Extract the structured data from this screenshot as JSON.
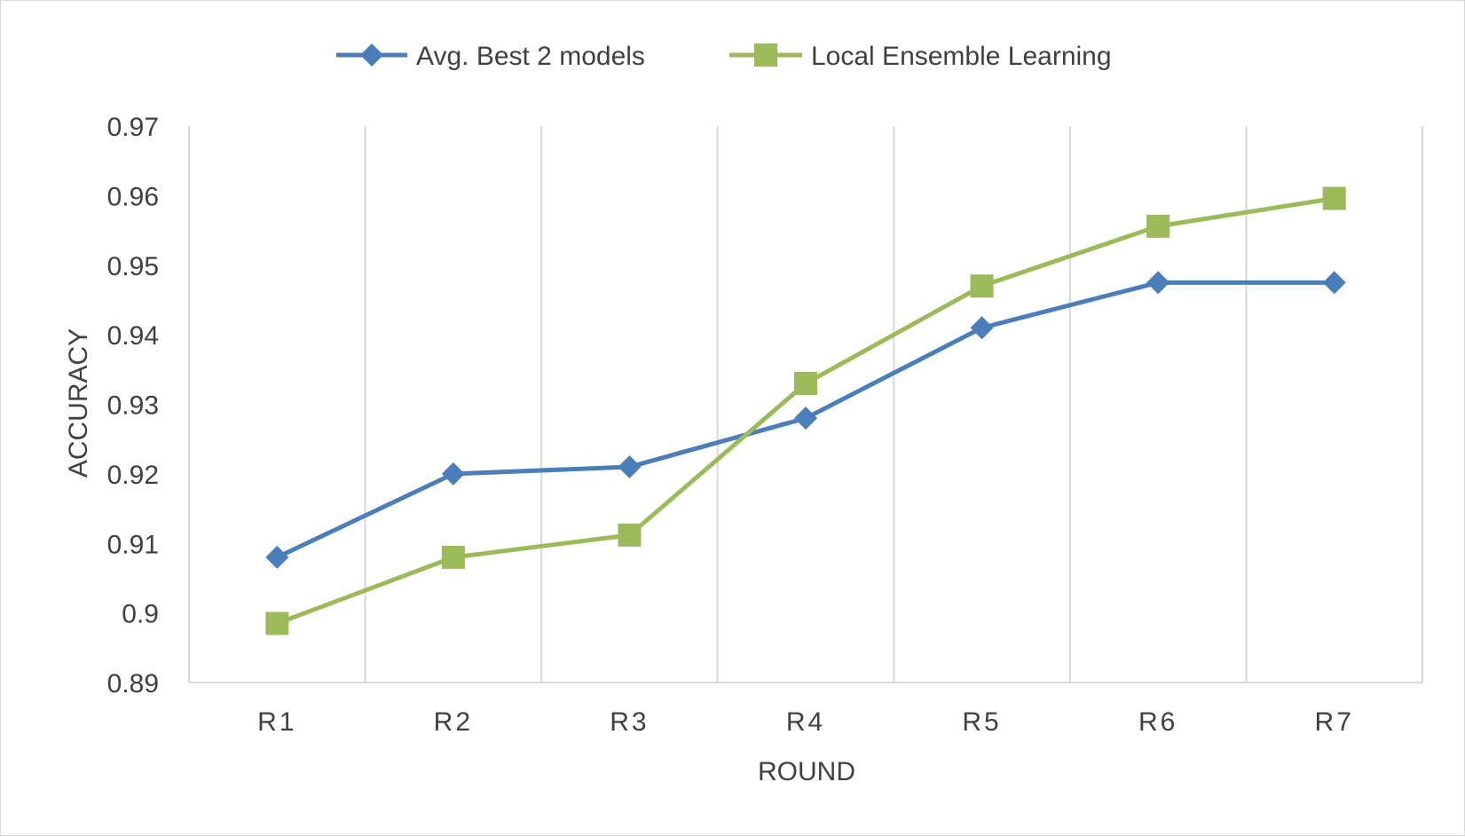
{
  "chart_data": {
    "type": "line",
    "categories": [
      "R1",
      "R2",
      "R3",
      "R4",
      "R5",
      "R6",
      "R7"
    ],
    "series": [
      {
        "name": "Avg. Best 2 models",
        "values": [
          0.908,
          0.92,
          0.921,
          0.928,
          0.941,
          0.9475,
          0.9475
        ],
        "color": "#4a7ebb",
        "marker": "diamond"
      },
      {
        "name": "Local Ensemble Learning",
        "values": [
          0.8985,
          0.908,
          0.9112,
          0.933,
          0.947,
          0.9556,
          0.9596
        ],
        "color": "#9bbb59",
        "marker": "square"
      }
    ],
    "xlabel": "ROUND",
    "ylabel": "ACCURACY",
    "ylim": [
      0.89,
      0.97
    ],
    "yticks": [
      "0.89",
      "0.9",
      "0.91",
      "0.92",
      "0.93",
      "0.94",
      "0.95",
      "0.96",
      "0.97"
    ],
    "grid": "vertical",
    "legend_position": "top-center"
  }
}
